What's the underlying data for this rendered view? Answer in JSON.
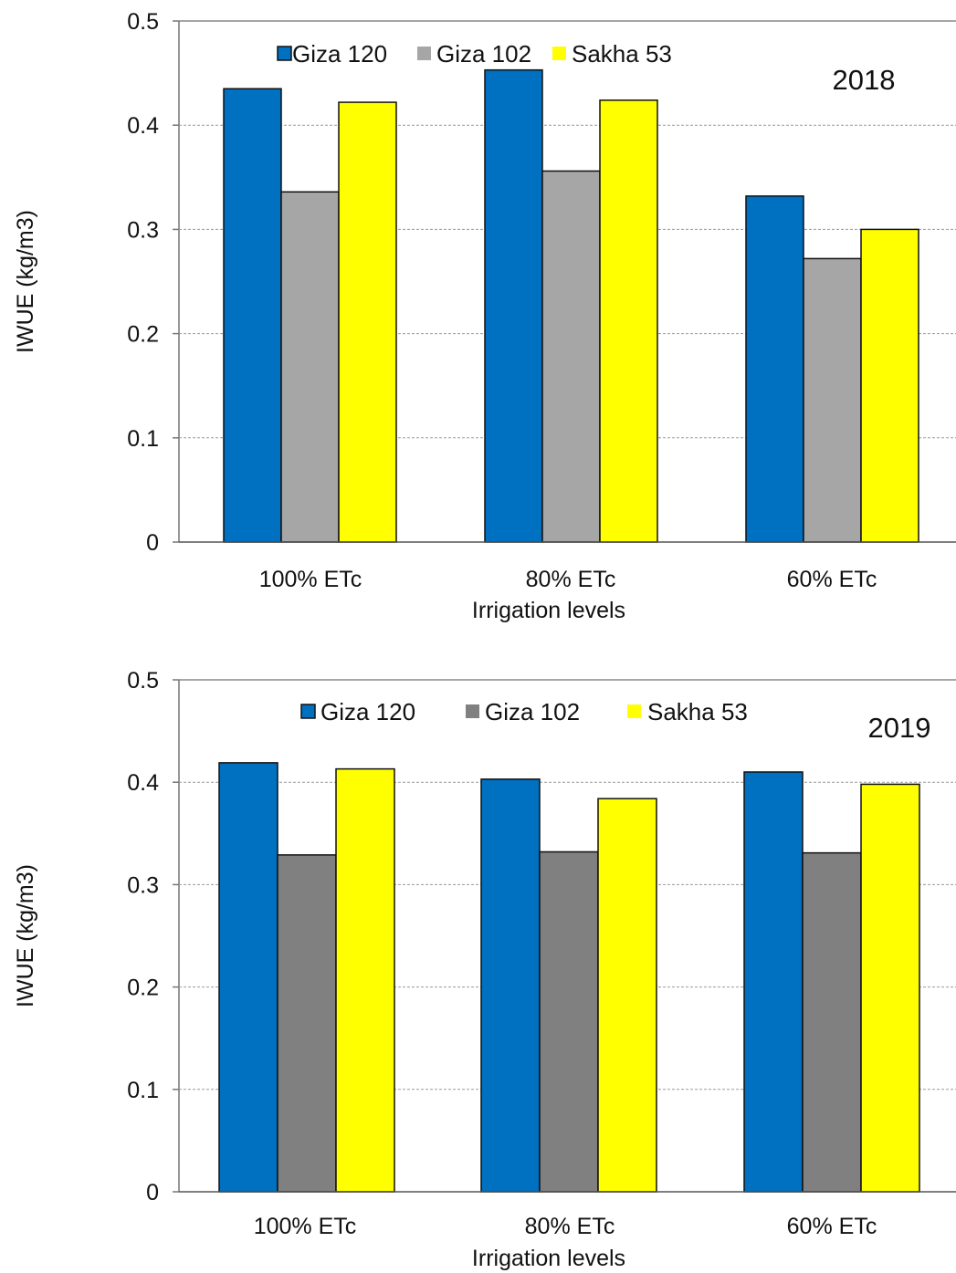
{
  "chart_data": [
    {
      "type": "bar",
      "annotation": "2018",
      "xlabel": "Irrigation levels",
      "ylabel": "IWUE (kg/m3)",
      "ylim": [
        0,
        0.5
      ],
      "yticks": [
        "0",
        "0.1",
        "0.2",
        "0.3",
        "0.4",
        "0.5"
      ],
      "grid": "horizontal dashed",
      "legend_position": "top",
      "categories": [
        "100% ETc",
        "80% ETc",
        "60% ETc"
      ],
      "series": [
        {
          "name": "Giza 120",
          "color": "#0070C0",
          "values": [
            0.435,
            0.453,
            0.332
          ]
        },
        {
          "name": "Giza 102",
          "color": "#A6A6A6",
          "values": [
            0.336,
            0.356,
            0.272
          ]
        },
        {
          "name": "Sakha 53",
          "color": "#FFFF00",
          "values": [
            0.422,
            0.424,
            0.3
          ]
        }
      ]
    },
    {
      "type": "bar",
      "annotation": "2019",
      "xlabel": "Irrigation levels",
      "ylabel": "IWUE (kg/m3)",
      "ylim": [
        0,
        0.5
      ],
      "yticks": [
        "0",
        "0.1",
        "0.2",
        "0.3",
        "0.4",
        "0.5"
      ],
      "grid": "horizontal dashed",
      "legend_position": "top",
      "categories": [
        "100% ETc",
        "80% ETc",
        "60% ETc"
      ],
      "series": [
        {
          "name": "Giza 120",
          "color": "#0070C0",
          "values": [
            0.419,
            0.403,
            0.41
          ]
        },
        {
          "name": "Giza 102",
          "color": "#808080",
          "values": [
            0.329,
            0.332,
            0.331
          ]
        },
        {
          "name": "Sakha 53",
          "color": "#FFFF00",
          "values": [
            0.413,
            0.384,
            0.398
          ]
        }
      ]
    }
  ]
}
